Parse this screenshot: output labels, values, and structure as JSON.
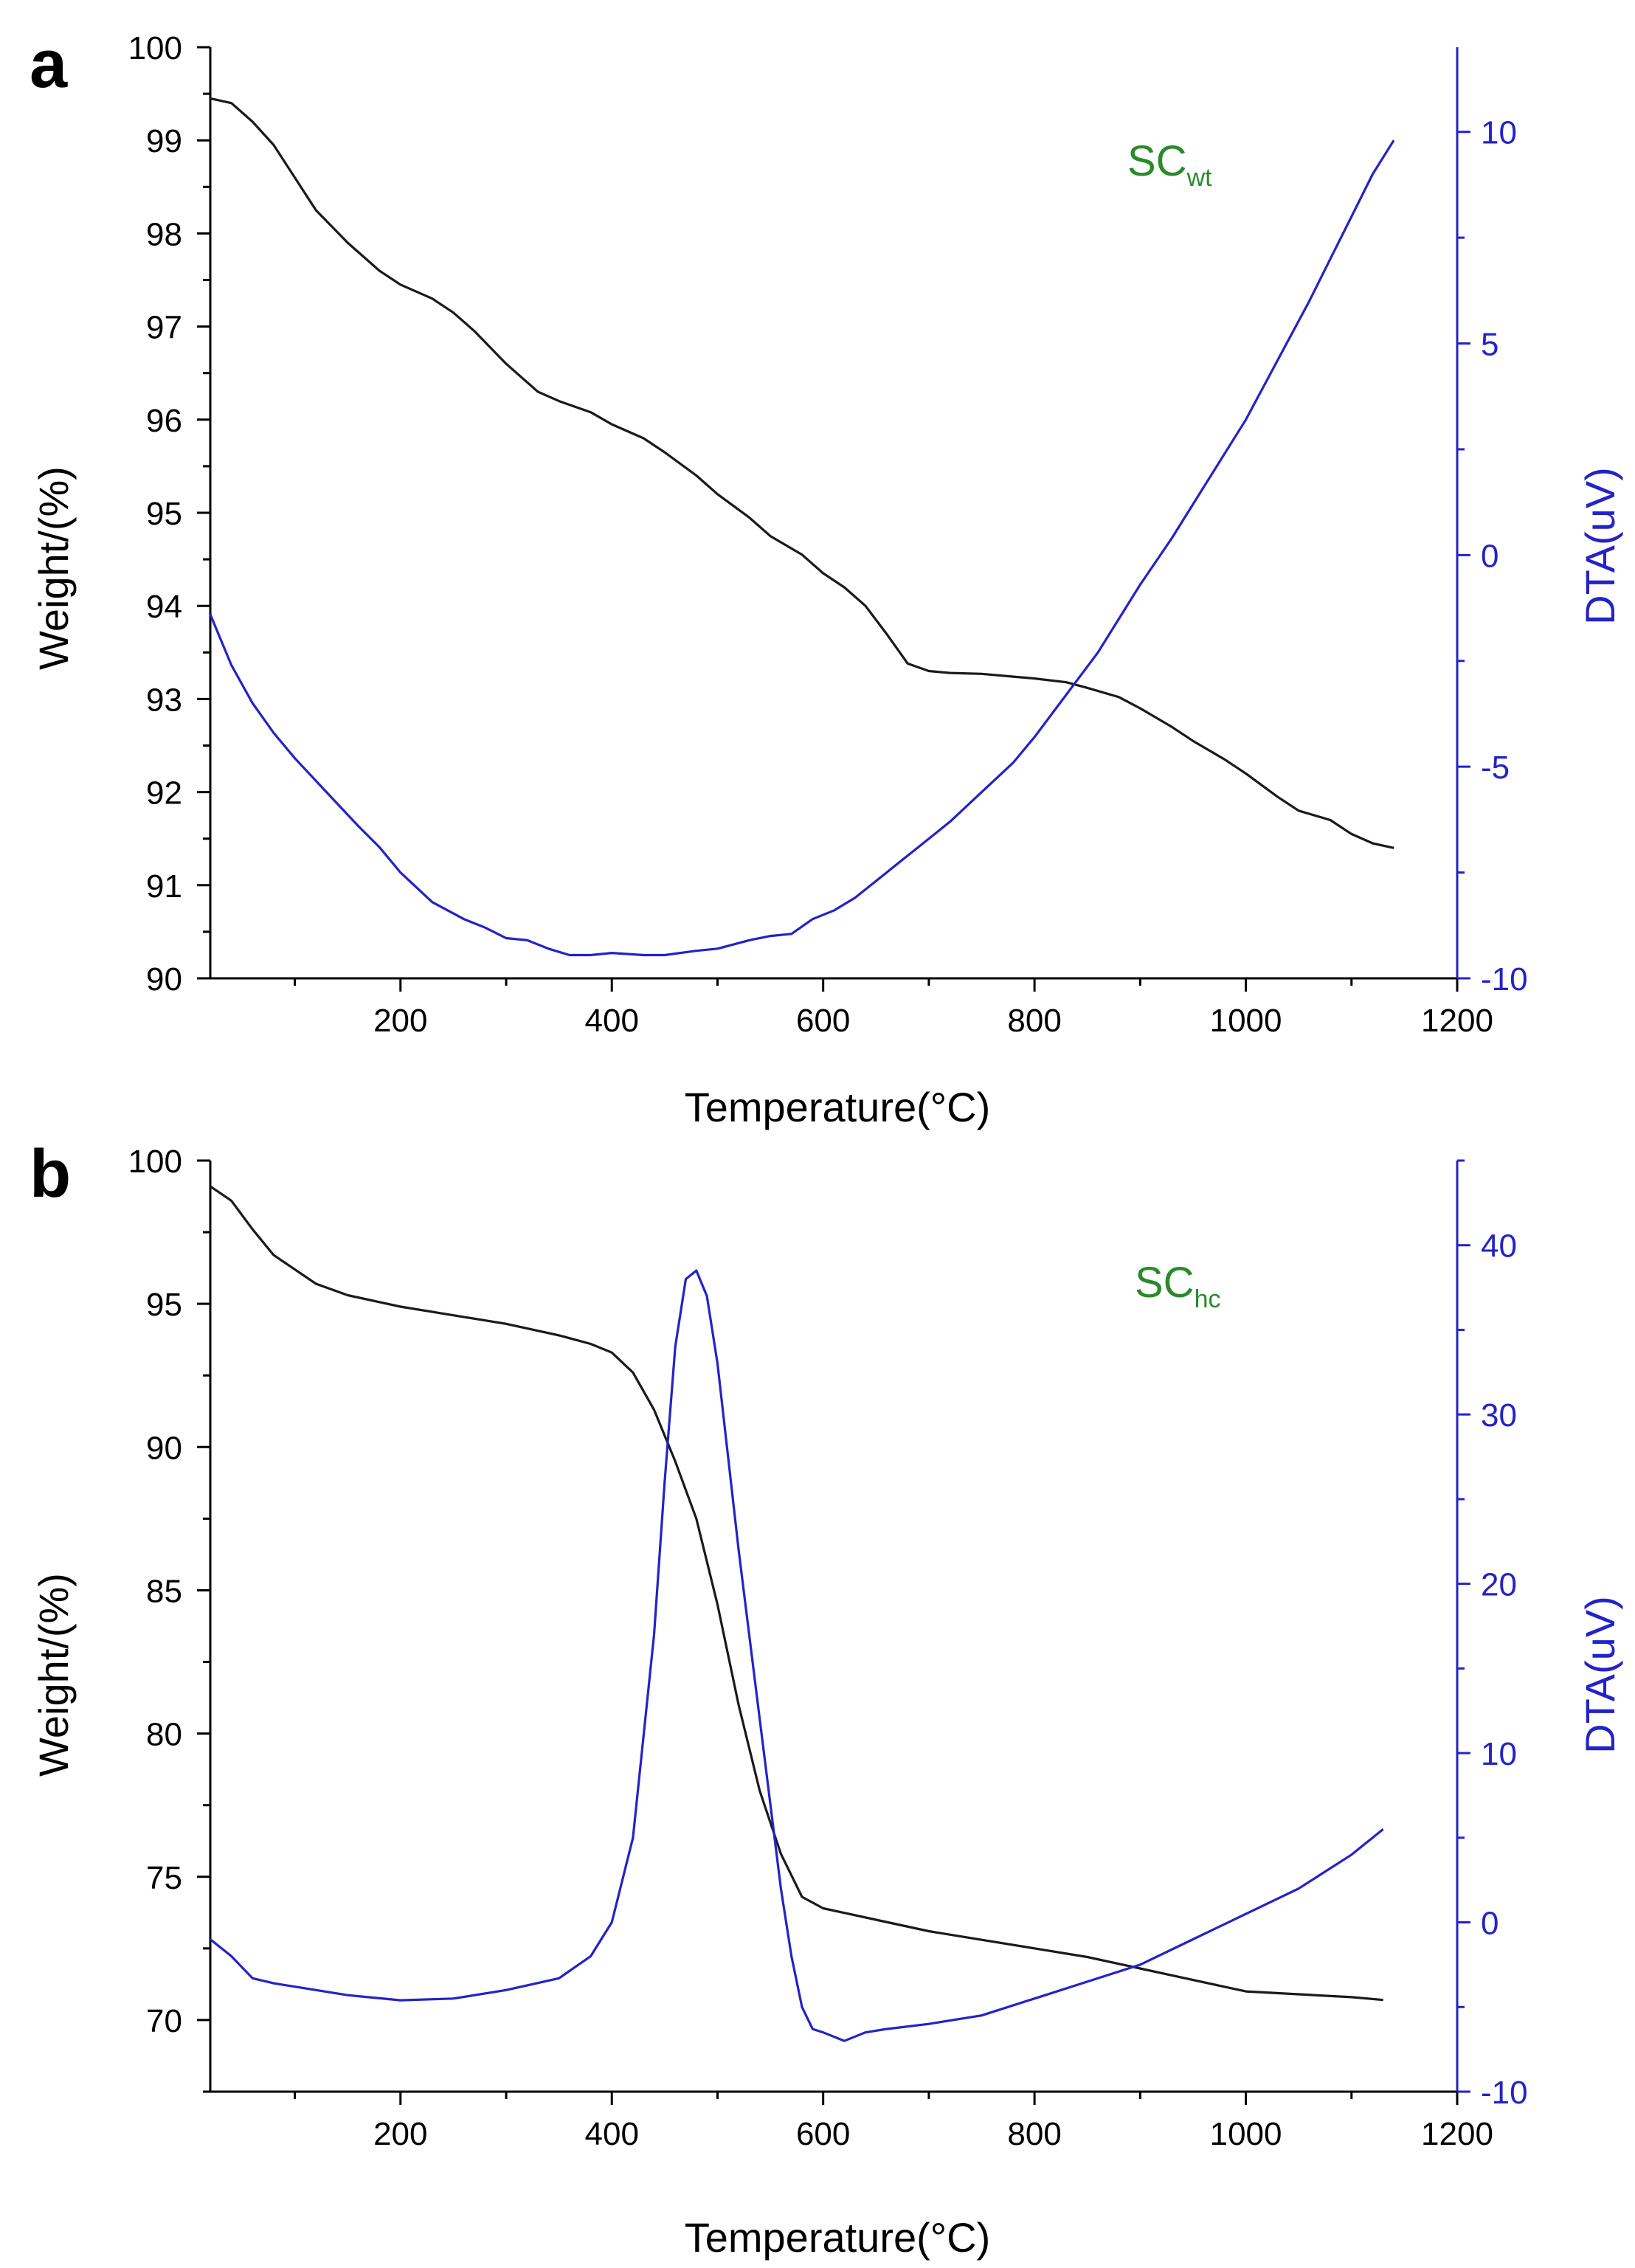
{
  "chart_data": [
    {
      "panel": "a",
      "type": "line",
      "annotation": {
        "main": "SC",
        "sub": "wt"
      },
      "xlabel": "Temperature(°C)",
      "ylabel_left": "Weight/(%)",
      "ylabel_right": "DTA(uV)",
      "xlim": [
        20,
        1200
      ],
      "xticks": [
        200,
        400,
        600,
        800,
        1000,
        1200
      ],
      "ylim_left": [
        90,
        100
      ],
      "yticks_left": [
        90,
        91,
        92,
        93,
        94,
        95,
        96,
        97,
        98,
        99,
        100
      ],
      "ylim_right": [
        -10,
        12
      ],
      "yticks_right": [
        -10,
        -5,
        0,
        5,
        10
      ],
      "grid": false,
      "colors": {
        "weight": "#1a1a1a",
        "dta": "#2323c8",
        "annotation": "#2a8a2a",
        "right_axis": "#2323c8"
      },
      "series": [
        {
          "axis": "left",
          "color": "#1a1a1a",
          "x": [
            20,
            40,
            60,
            80,
            100,
            120,
            150,
            180,
            200,
            230,
            250,
            270,
            300,
            330,
            350,
            380,
            400,
            430,
            450,
            480,
            500,
            530,
            550,
            580,
            600,
            620,
            640,
            660,
            680,
            700,
            720,
            750,
            780,
            800,
            830,
            850,
            880,
            900,
            930,
            950,
            980,
            1000,
            1030,
            1050,
            1080,
            1100,
            1120,
            1140
          ],
          "y": [
            99.45,
            99.4,
            99.2,
            98.95,
            98.6,
            98.25,
            97.9,
            97.6,
            97.45,
            97.3,
            97.15,
            96.95,
            96.6,
            96.3,
            96.2,
            96.08,
            95.95,
            95.8,
            95.65,
            95.4,
            95.2,
            94.95,
            94.75,
            94.55,
            94.35,
            94.2,
            94.0,
            93.7,
            93.38,
            93.3,
            93.28,
            93.27,
            93.24,
            93.22,
            93.18,
            93.12,
            93.02,
            92.9,
            92.7,
            92.55,
            92.35,
            92.2,
            91.95,
            91.8,
            91.7,
            91.55,
            91.45,
            91.4
          ]
        },
        {
          "axis": "right",
          "color": "#2323c8",
          "x": [
            20,
            40,
            60,
            80,
            100,
            130,
            160,
            180,
            200,
            230,
            260,
            280,
            300,
            320,
            340,
            360,
            380,
            400,
            430,
            450,
            480,
            500,
            530,
            550,
            570,
            590,
            610,
            630,
            650,
            670,
            690,
            720,
            750,
            780,
            800,
            830,
            860,
            880,
            900,
            930,
            950,
            980,
            1000,
            1030,
            1060,
            1080,
            1100,
            1120,
            1140
          ],
          "y": [
            -1.4,
            -2.6,
            -3.5,
            -4.2,
            -4.8,
            -5.6,
            -6.4,
            -6.9,
            -7.5,
            -8.2,
            -8.6,
            -8.8,
            -9.05,
            -9.1,
            -9.3,
            -9.45,
            -9.45,
            -9.4,
            -9.45,
            -9.45,
            -9.35,
            -9.3,
            -9.1,
            -9.0,
            -8.95,
            -8.6,
            -8.4,
            -8.1,
            -7.7,
            -7.3,
            -6.9,
            -6.3,
            -5.6,
            -4.9,
            -4.3,
            -3.3,
            -2.3,
            -1.5,
            -0.7,
            0.4,
            1.2,
            2.4,
            3.2,
            4.6,
            6.0,
            7.0,
            8.0,
            9.0,
            9.8
          ]
        }
      ]
    },
    {
      "panel": "b",
      "type": "line",
      "annotation": {
        "main": "SC",
        "sub": "hc"
      },
      "xlabel": "Temperature(°C)",
      "ylabel_left": "Weight/(%)",
      "ylabel_right": "DTA(uV)",
      "xlim": [
        20,
        1200
      ],
      "xticks": [
        200,
        400,
        600,
        800,
        1000,
        1200
      ],
      "ylim_left": [
        67.5,
        100
      ],
      "yticks_left": [
        70,
        75,
        80,
        85,
        90,
        95,
        100
      ],
      "ylim_right": [
        -10,
        45
      ],
      "yticks_right": [
        -10,
        0,
        10,
        20,
        30,
        40
      ],
      "grid": false,
      "colors": {
        "weight": "#1a1a1a",
        "dta": "#2323c8",
        "annotation": "#2a8a2a",
        "right_axis": "#2323c8"
      },
      "series": [
        {
          "axis": "left",
          "color": "#1a1a1a",
          "x": [
            20,
            40,
            60,
            80,
            100,
            120,
            150,
            200,
            250,
            300,
            350,
            380,
            400,
            420,
            440,
            460,
            480,
            500,
            520,
            540,
            560,
            580,
            600,
            650,
            700,
            750,
            800,
            850,
            900,
            950,
            1000,
            1050,
            1100,
            1130
          ],
          "y": [
            99.1,
            98.6,
            97.6,
            96.7,
            96.2,
            95.7,
            95.3,
            94.9,
            94.6,
            94.3,
            93.9,
            93.6,
            93.3,
            92.6,
            91.3,
            89.5,
            87.5,
            84.5,
            81.0,
            78.0,
            75.8,
            74.3,
            73.9,
            73.5,
            73.1,
            72.8,
            72.5,
            72.2,
            71.8,
            71.4,
            71.0,
            70.9,
            70.8,
            70.7
          ]
        },
        {
          "axis": "right",
          "color": "#2323c8",
          "x": [
            20,
            40,
            60,
            80,
            100,
            150,
            200,
            250,
            300,
            350,
            380,
            400,
            420,
            440,
            450,
            460,
            470,
            480,
            490,
            500,
            520,
            540,
            560,
            570,
            580,
            590,
            600,
            620,
            640,
            660,
            700,
            750,
            800,
            850,
            900,
            950,
            1000,
            1050,
            1100,
            1130
          ],
          "y": [
            -1.0,
            -2.0,
            -3.3,
            -3.6,
            -3.8,
            -4.3,
            -4.6,
            -4.5,
            -4.0,
            -3.3,
            -2.0,
            0.0,
            5.0,
            17.0,
            26.0,
            34.0,
            38.0,
            38.5,
            37.0,
            33.0,
            22.0,
            12.0,
            2.0,
            -2.0,
            -5.0,
            -6.3,
            -6.5,
            -7.0,
            -6.5,
            -6.3,
            -6.0,
            -5.5,
            -4.5,
            -3.5,
            -2.5,
            -1.0,
            0.5,
            2.0,
            4.0,
            5.5
          ]
        }
      ]
    }
  ]
}
